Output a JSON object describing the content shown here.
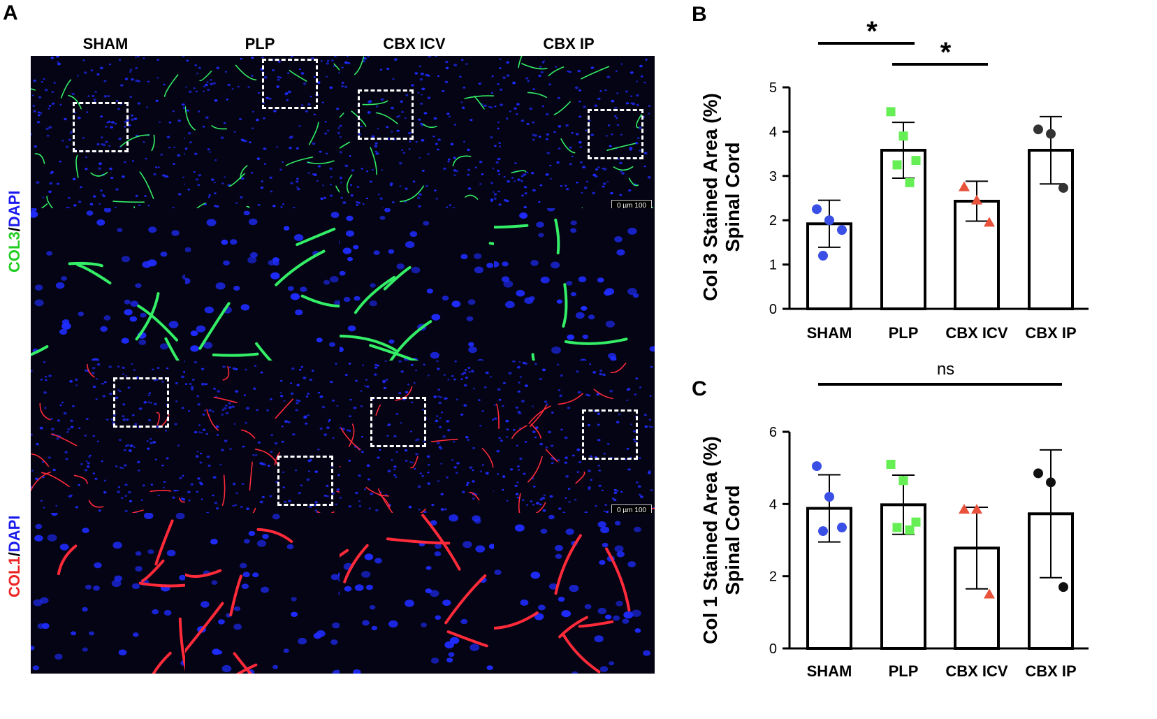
{
  "panel_a": {
    "letter": "A",
    "columns": [
      "SHAM",
      "PLP",
      "CBX ICV",
      "CBX IP"
    ],
    "row_labels": [
      {
        "stain": "COL3",
        "sep": "/",
        "counter": "DAPI",
        "stain_color": "#22cc22",
        "counter_color": "#1a1aee"
      },
      {
        "stain": "COL1",
        "sep": "/",
        "counter": "DAPI",
        "stain_color": "#ee2222",
        "counter_color": "#1a1aee"
      }
    ],
    "scale_bar_text": "0 µm 100",
    "tile_colors": {
      "col3": "#33ee66",
      "col1": "#ff2a3a",
      "dapi": "#1f2cff"
    }
  },
  "chart_data": [
    {
      "panel": "B",
      "type": "bar",
      "categories": [
        "SHAM",
        "PLP",
        "CBX ICV",
        "CBX IP"
      ],
      "ylabel_line1": "Col 3 Stained Area (%)",
      "ylabel_line2": "Spinal Cord",
      "ylim": [
        0,
        5
      ],
      "yticks": [
        0,
        1,
        2,
        3,
        4,
        5
      ],
      "series": [
        {
          "category": "SHAM",
          "mean": 1.92,
          "sd": 0.53,
          "marker": "circle",
          "color": "#3a4fe6",
          "points": [
            2.25,
            2.0,
            1.78,
            1.2
          ]
        },
        {
          "category": "PLP",
          "mean": 3.58,
          "sd": 0.63,
          "marker": "square",
          "color": "#66ee55",
          "points": [
            4.45,
            3.9,
            3.35,
            3.25,
            2.85
          ]
        },
        {
          "category": "CBX ICV",
          "mean": 2.43,
          "sd": 0.45,
          "marker": "triangle",
          "color": "#e8513a",
          "points": [
            2.75,
            2.45,
            1.95
          ]
        },
        {
          "category": "CBX IP",
          "mean": 3.58,
          "sd": 0.76,
          "marker": "circle",
          "color": "#333333",
          "points": [
            4.05,
            3.95,
            2.73
          ]
        }
      ],
      "significance": [
        {
          "from": "SHAM",
          "to": "PLP",
          "label": "*"
        },
        {
          "from": "PLP",
          "to": "CBX ICV",
          "label": "*"
        }
      ]
    },
    {
      "panel": "C",
      "type": "bar",
      "categories": [
        "SHAM",
        "PLP",
        "CBX ICV",
        "CBX IP"
      ],
      "ylabel_line1": "Col 1 Stained Area (%)",
      "ylabel_line2": "Spinal Cord",
      "ylim": [
        0,
        6
      ],
      "yticks": [
        0,
        2,
        4,
        6
      ],
      "series": [
        {
          "category": "SHAM",
          "mean": 3.88,
          "sd": 0.93,
          "marker": "circle",
          "color": "#3a4fe6",
          "points": [
            5.05,
            4.2,
            3.35,
            3.25
          ]
        },
        {
          "category": "PLP",
          "mean": 3.98,
          "sd": 0.82,
          "marker": "square",
          "color": "#66ee55",
          "points": [
            5.1,
            4.65,
            3.5,
            3.35,
            3.28
          ]
        },
        {
          "category": "CBX ICV",
          "mean": 2.78,
          "sd": 1.13,
          "marker": "triangle",
          "color": "#e8513a",
          "points": [
            3.85,
            3.85,
            1.5
          ]
        },
        {
          "category": "CBX IP",
          "mean": 3.73,
          "sd": 1.77,
          "marker": "circle",
          "color": "#111111",
          "points": [
            4.85,
            4.6,
            1.7
          ]
        }
      ],
      "significance": [
        {
          "from": "SHAM",
          "to": "CBX IP",
          "label": "ns"
        }
      ]
    }
  ]
}
